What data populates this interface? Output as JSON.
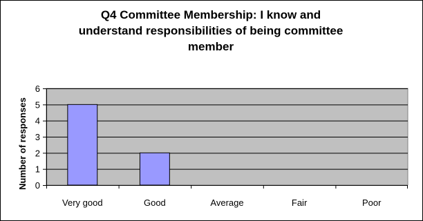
{
  "chart_data": {
    "type": "bar",
    "title": "Q4 Committee Membership: I know and understand responsibilities of being committee member",
    "title_lines": [
      "Q4 Committee Membership: I know and",
      "understand responsibilities of being committee",
      "member"
    ],
    "xlabel": "",
    "ylabel": "Number of responses",
    "categories": [
      "Very good",
      "Good",
      "Average",
      "Fair",
      "Poor"
    ],
    "values": [
      5,
      2,
      0,
      0,
      0
    ],
    "ylim": [
      0,
      6
    ],
    "yticks": [
      "0",
      "1",
      "2",
      "3",
      "4",
      "5",
      "6"
    ],
    "grid": true,
    "colors": {
      "bar_fill": "#9999ff",
      "plot_background": "#c0c0c0",
      "gridline": "#000000"
    }
  }
}
